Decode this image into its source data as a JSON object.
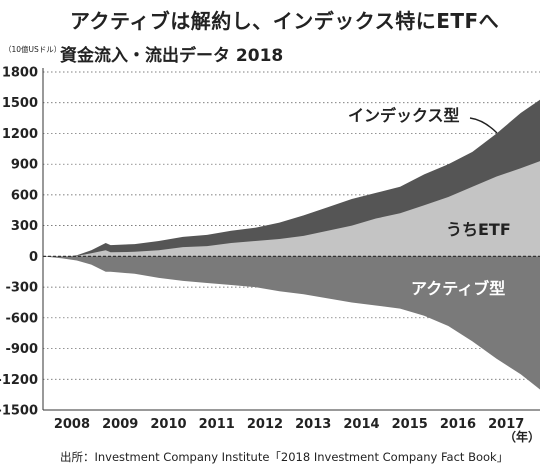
{
  "title": "アクティブは解約し、インデックス特にETFへ",
  "subtitle": "資金流入・流出データ 2018",
  "source": "出所：Investment Company Institute「2018 Investment Company Fact Book」",
  "colors": {
    "index": "#555555",
    "etf": "#c4c4c4",
    "active": "#7a7a7a",
    "grid": "#555555",
    "background": "#ffffff"
  },
  "chart_data": {
    "type": "area",
    "title": "資金流入・流出データ 2018",
    "ylabel": "（10億USドル）",
    "xlabel": "（年）",
    "ylim": [
      -1500,
      1800
    ],
    "xlim": [
      2007.6,
      2017.9
    ],
    "yticks": [
      1800,
      1500,
      1200,
      900,
      600,
      300,
      0,
      -300,
      -600,
      -900,
      -1200,
      -1500
    ],
    "yticklabels": [
      "1800",
      "1500",
      "1200",
      "900",
      "600",
      "300",
      "0",
      "-300",
      "-600",
      "-900",
      "-1200",
      "-1500"
    ],
    "xticks": [
      2008,
      2009,
      2010,
      2011,
      2012,
      2013,
      2014,
      2015,
      2016,
      2017
    ],
    "xticklabels": [
      "2008",
      "2009",
      "2010",
      "2011",
      "2012",
      "2013",
      "2014",
      "2015",
      "2016",
      "2017"
    ],
    "x": [
      2007.6,
      2008.0,
      2008.3,
      2008.6,
      2008.9,
      2009.0,
      2009.5,
      2010.0,
      2010.5,
      2011.0,
      2011.5,
      2012.0,
      2012.5,
      2013.0,
      2013.5,
      2014.0,
      2014.5,
      2015.0,
      2015.5,
      2016.0,
      2016.5,
      2017.0,
      2017.5,
      2017.9
    ],
    "series": [
      {
        "name": "インデックス型",
        "values": [
          0,
          -10,
          10,
          60,
          130,
          110,
          120,
          150,
          190,
          210,
          250,
          280,
          330,
          400,
          480,
          560,
          620,
          680,
          800,
          900,
          1020,
          1200,
          1400,
          1530
        ]
      },
      {
        "name": "うちETF",
        "values": [
          0,
          -10,
          5,
          30,
          60,
          40,
          45,
          60,
          90,
          100,
          130,
          150,
          170,
          200,
          250,
          300,
          370,
          420,
          500,
          580,
          680,
          780,
          860,
          930
        ]
      },
      {
        "name": "アクティブ型",
        "values": [
          0,
          -20,
          -40,
          -80,
          -150,
          -150,
          -170,
          -210,
          -240,
          -260,
          -280,
          -300,
          -340,
          -370,
          -410,
          -450,
          -480,
          -510,
          -580,
          -680,
          -830,
          -1000,
          -1150,
          -1300
        ]
      }
    ],
    "annotations": [
      {
        "text": "インデックス型",
        "series": 0
      },
      {
        "text": "うちETF",
        "series": 1
      },
      {
        "text": "アクティブ型",
        "series": 2
      }
    ]
  }
}
